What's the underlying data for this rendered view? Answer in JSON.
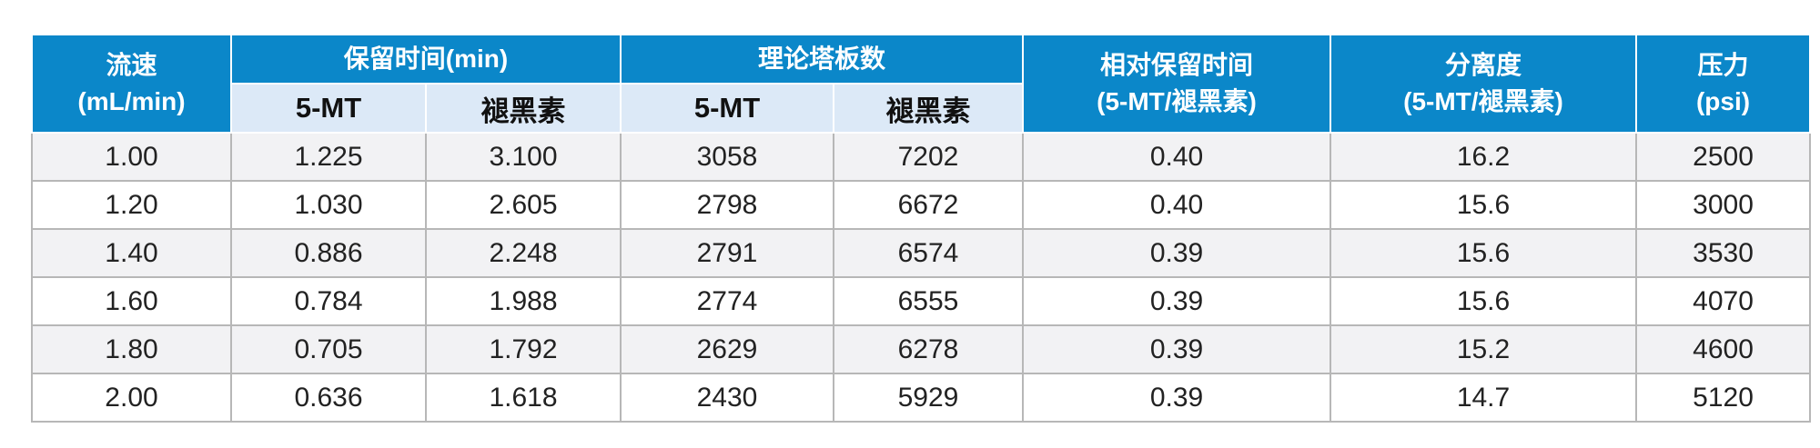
{
  "table": {
    "headers": {
      "flow": {
        "line1": "流速",
        "line2": "(mL/min)"
      },
      "retention": "保留时间(min)",
      "plates": "理论塔板数",
      "relative": {
        "line1": "相对保留时间",
        "line2": "(5-MT/褪黑素)"
      },
      "resolution": {
        "line1": "分离度",
        "line2": "(5-MT/褪黑素)"
      },
      "pressure": {
        "line1": "压力",
        "line2": "(psi)"
      },
      "sub": [
        "5-MT",
        "褪黑素",
        "5-MT",
        "褪黑素"
      ]
    },
    "rows": [
      [
        "1.00",
        "1.225",
        "3.100",
        "3058",
        "7202",
        "0.40",
        "16.2",
        "2500"
      ],
      [
        "1.20",
        "1.030",
        "2.605",
        "2798",
        "6672",
        "0.40",
        "15.6",
        "3000"
      ],
      [
        "1.40",
        "0.886",
        "2.248",
        "2791",
        "6574",
        "0.39",
        "15.6",
        "3530"
      ],
      [
        "1.60",
        "0.784",
        "1.988",
        "2774",
        "6555",
        "0.39",
        "15.6",
        "4070"
      ],
      [
        "1.80",
        "0.705",
        "1.792",
        "2629",
        "6278",
        "0.39",
        "15.2",
        "4600"
      ],
      [
        "2.00",
        "0.636",
        "1.618",
        "2430",
        "5929",
        "0.39",
        "14.7",
        "5120"
      ]
    ]
  }
}
